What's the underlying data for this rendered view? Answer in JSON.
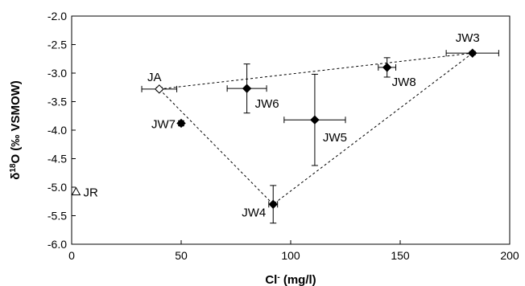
{
  "chart_data": {
    "type": "scatter",
    "title": "",
    "xlabel": "Cl",
    "xlabel_sup": "-",
    "xlabel_unit": " (mg/l)",
    "ylabel_prefix": "δ",
    "ylabel_sup": "18",
    "ylabel_rest": "O (‰ VSMOW)",
    "xlim": [
      0,
      200
    ],
    "ylim": [
      -6.0,
      -2.0
    ],
    "xticks": [
      0,
      50,
      100,
      150,
      200
    ],
    "xtick_labels": [
      "0",
      "50",
      "100",
      "150",
      "200"
    ],
    "yticks": [
      -2.0,
      -2.5,
      -3.0,
      -3.5,
      -4.0,
      -4.5,
      -5.0,
      -5.5,
      -6.0
    ],
    "ytick_labels": [
      "-2.0",
      "-2.5",
      "-3.0",
      "-3.5",
      "-4.0",
      "-4.5",
      "-5.0",
      "-5.5",
      "-6.0"
    ],
    "grid": false,
    "legend": "none",
    "points": [
      {
        "label": "JA",
        "x": 40,
        "y": -3.28,
        "xerr": 8,
        "yerr": 0.03,
        "marker": "hollow-diamond"
      },
      {
        "label": "JW3",
        "x": 183,
        "y": -2.65,
        "xerr": 12,
        "yerr": 0.03,
        "marker": "diamond"
      },
      {
        "label": "JW8",
        "x": 144,
        "y": -2.9,
        "xerr": 4,
        "yerr": 0.17,
        "marker": "diamond"
      },
      {
        "label": "JW6",
        "x": 80,
        "y": -3.27,
        "xerr": 9,
        "yerr": 0.43,
        "marker": "diamond"
      },
      {
        "label": "JW5",
        "x": 111,
        "y": -3.82,
        "xerr": 14,
        "yerr": 0.8,
        "marker": "diamond"
      },
      {
        "label": "JW7",
        "x": 50,
        "y": -3.88,
        "xerr": 1,
        "yerr": 0.04,
        "marker": "diamond"
      },
      {
        "label": "JW4",
        "x": 92,
        "y": -5.3,
        "xerr": 2,
        "yerr": 0.33,
        "marker": "diamond"
      },
      {
        "label": "JR",
        "x": 2,
        "y": -5.08,
        "xerr": 0,
        "yerr": 0,
        "marker": "hollow-triangle"
      }
    ],
    "mixing_triangle": [
      "JA",
      "JW3",
      "JW4"
    ]
  }
}
